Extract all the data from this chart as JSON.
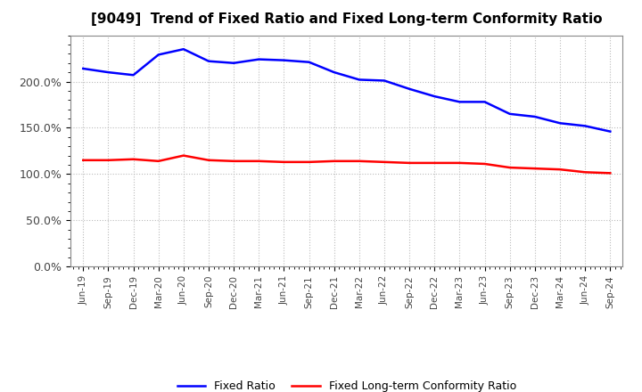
{
  "title": "[9049]  Trend of Fixed Ratio and Fixed Long-term Conformity Ratio",
  "x_labels": [
    "Jun-19",
    "Sep-19",
    "Dec-19",
    "Mar-20",
    "Jun-20",
    "Sep-20",
    "Dec-20",
    "Mar-21",
    "Jun-21",
    "Sep-21",
    "Dec-21",
    "Mar-22",
    "Jun-22",
    "Sep-22",
    "Dec-22",
    "Mar-23",
    "Jun-23",
    "Sep-23",
    "Dec-23",
    "Mar-24",
    "Jun-24",
    "Sep-24"
  ],
  "fixed_ratio": [
    214,
    210,
    207,
    229,
    235,
    222,
    220,
    224,
    223,
    221,
    210,
    202,
    201,
    192,
    184,
    178,
    178,
    165,
    162,
    155,
    152,
    146
  ],
  "fixed_lt_ratio": [
    115,
    115,
    116,
    114,
    120,
    115,
    114,
    114,
    113,
    113,
    114,
    114,
    113,
    112,
    112,
    112,
    111,
    107,
    106,
    105,
    102,
    101
  ],
  "fixed_ratio_color": "#0000FF",
  "fixed_lt_ratio_color": "#FF0000",
  "ylim": [
    0,
    250
  ],
  "yticks": [
    0,
    50,
    100,
    150,
    200
  ],
  "ytick_labels": [
    "0.0%",
    "50.0%",
    "100.0%",
    "150.0%",
    "200.0%"
  ],
  "background_color": "#FFFFFF",
  "plot_bg_color": "#FFFFFF",
  "grid_color": "#BBBBBB",
  "legend_fixed_ratio": "Fixed Ratio",
  "legend_fixed_lt_ratio": "Fixed Long-term Conformity Ratio"
}
